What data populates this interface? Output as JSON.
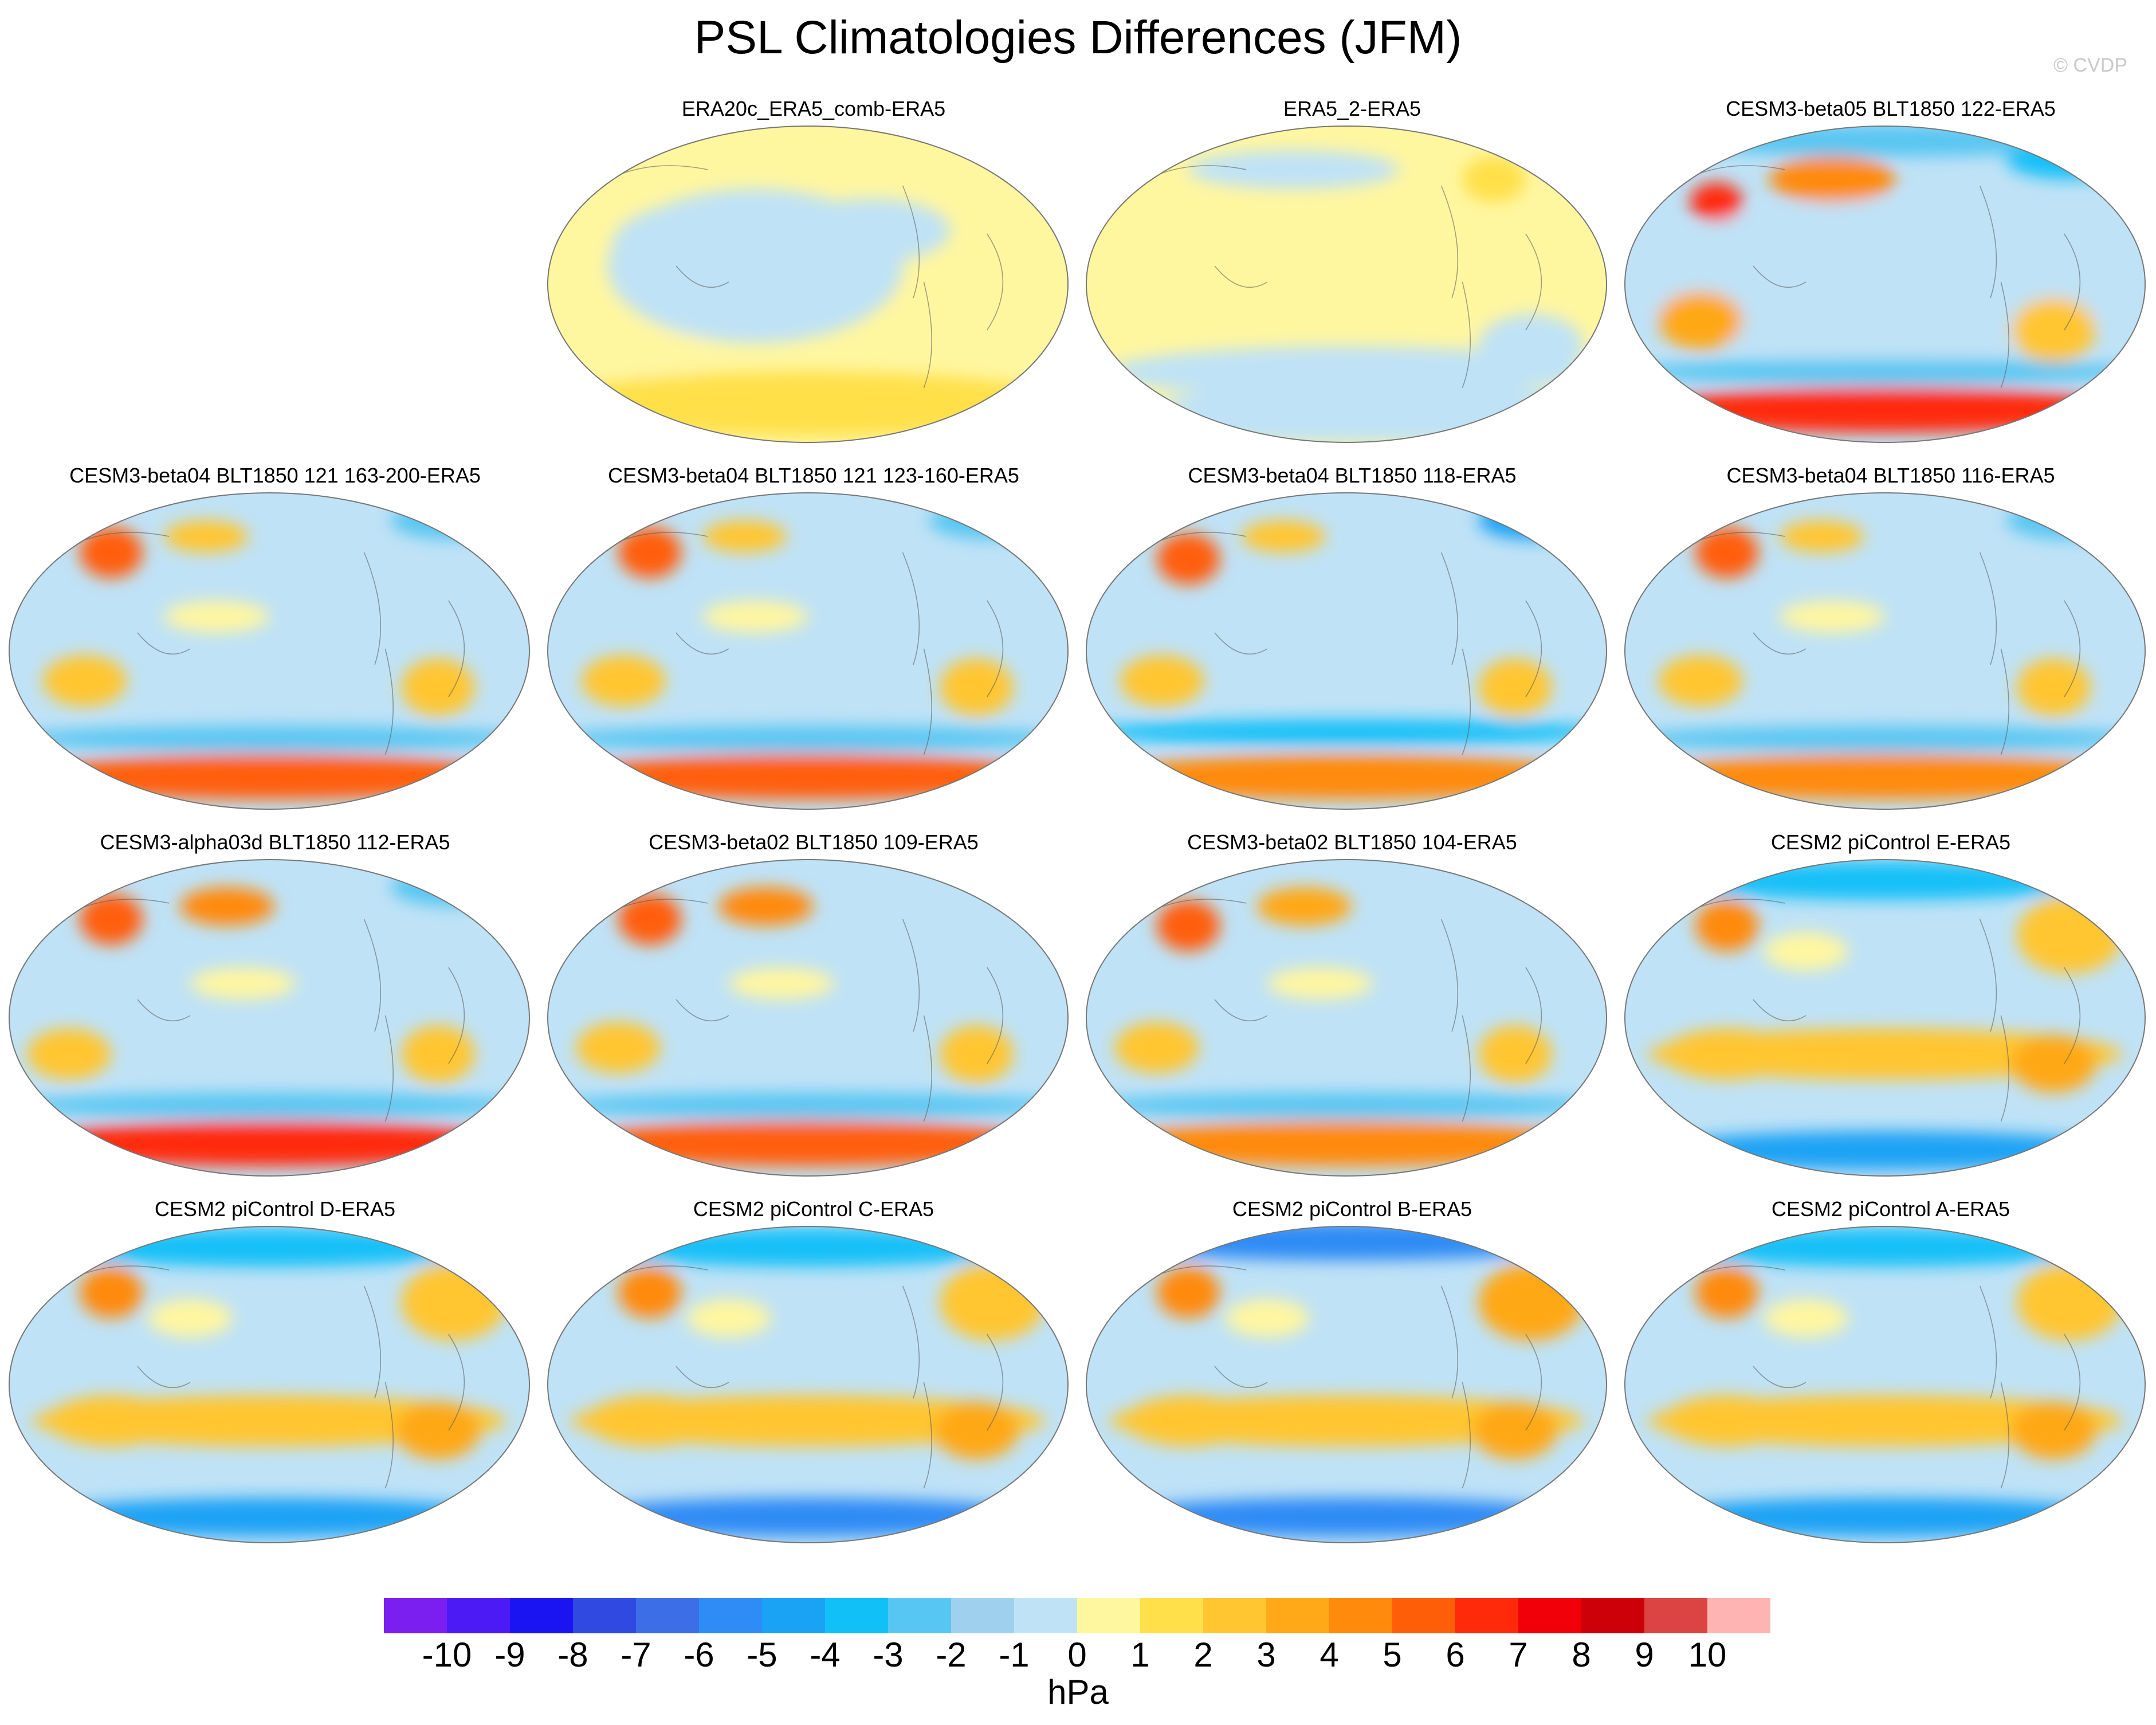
{
  "title": "PSL Climatologies Differences (JFM)",
  "credit": "© CVDP",
  "chart_data": {
    "type": "heatmap",
    "season": "JFM",
    "variable": "PSL",
    "units": "hPa",
    "colorbar": {
      "tick_labels": [
        "-10",
        "-9",
        "-8",
        "-7",
        "-6",
        "-5",
        "-4",
        "-3",
        "-2",
        "-1",
        "0",
        "1",
        "2",
        "3",
        "4",
        "5",
        "6",
        "7",
        "8",
        "9",
        "10"
      ],
      "colors": [
        "#7a1ff0",
        "#4b1af5",
        "#1a13f2",
        "#3049e0",
        "#3c6ee8",
        "#2f8bf5",
        "#1aa2f5",
        "#12c0f8",
        "#58c6f2",
        "#9fd1ee",
        "#bfe2f6",
        "#fff6a0",
        "#ffe04a",
        "#ffc632",
        "#ffa818",
        "#ff8a0c",
        "#ff5e08",
        "#ff2a0a",
        "#f2000a",
        "#cd000a",
        "#dc4444",
        "#ffb4b4"
      ]
    },
    "panels": [
      {
        "name": "ERA20c_ERA5_comb-ERA5",
        "cx": 0.22,
        "cy": 0.46,
        "label": "ERA20c_ERA5_comb-ERA5",
        "features": [
          [
            0.4,
            0.45,
            0.28,
            0.24,
            10
          ],
          [
            0.35,
            0.38,
            0.22,
            0.14,
            10
          ],
          [
            0.62,
            0.34,
            0.15,
            0.1,
            10
          ],
          [
            0.5,
            0.9,
            0.48,
            0.07,
            12
          ],
          [
            0.85,
            0.55,
            0.1,
            0.12,
            11
          ],
          [
            0.2,
            0.72,
            0.12,
            0.07,
            11
          ]
        ],
        "base": 11,
        "south": [
          0.5,
          0.88,
          0.5,
          0.1,
          12
        ]
      },
      {
        "name": "ERA5_2-ERA5",
        "label": "ERA5_2-ERA5",
        "base": 11,
        "features": [
          [
            0.5,
            0.78,
            0.45,
            0.08,
            10
          ],
          [
            0.55,
            0.88,
            0.4,
            0.06,
            10
          ],
          [
            0.78,
            0.18,
            0.06,
            0.07,
            12
          ],
          [
            0.4,
            0.15,
            0.2,
            0.06,
            10
          ],
          [
            0.85,
            0.7,
            0.1,
            0.1,
            10
          ]
        ],
        "south": [
          0.5,
          0.95,
          0.5,
          0.05,
          10
        ]
      },
      {
        "name": "CESM3-beta05 BLT1850 122-ERA5",
        "label": "CESM3-beta05 BLT1850 122-ERA5",
        "base": 10,
        "features": [
          [
            0.5,
            0.5,
            0.48,
            0.25,
            10
          ],
          [
            0.4,
            0.18,
            0.12,
            0.07,
            15
          ],
          [
            0.18,
            0.25,
            0.05,
            0.06,
            17
          ],
          [
            0.15,
            0.62,
            0.08,
            0.09,
            14
          ],
          [
            0.82,
            0.65,
            0.08,
            0.1,
            13
          ],
          [
            0.5,
            0.78,
            0.5,
            0.04,
            8
          ],
          [
            0.5,
            0.9,
            0.48,
            0.07,
            17
          ],
          [
            0.5,
            0.06,
            0.4,
            0.05,
            8
          ],
          [
            0.85,
            0.12,
            0.12,
            0.06,
            7
          ]
        ]
      },
      {
        "name": "CESM3-beta04 BLT1850 121 163-200-ERA5",
        "label": "CESM3-beta04 BLT1850 121 163-200-ERA5",
        "base": 10,
        "features": [
          [
            0.2,
            0.2,
            0.06,
            0.08,
            16
          ],
          [
            0.38,
            0.15,
            0.08,
            0.05,
            13
          ],
          [
            0.15,
            0.6,
            0.08,
            0.08,
            13
          ],
          [
            0.82,
            0.62,
            0.07,
            0.09,
            13
          ],
          [
            0.5,
            0.78,
            0.5,
            0.04,
            8
          ],
          [
            0.5,
            0.9,
            0.48,
            0.07,
            16
          ],
          [
            0.4,
            0.4,
            0.1,
            0.05,
            11
          ],
          [
            0.85,
            0.1,
            0.12,
            0.06,
            8
          ]
        ]
      },
      {
        "name": "CESM3-beta04 BLT1850 121 123-160-ERA5",
        "label": "CESM3-beta04 BLT1850 121 123-160-ERA5",
        "base": 10,
        "features": [
          [
            0.2,
            0.2,
            0.06,
            0.08,
            16
          ],
          [
            0.38,
            0.15,
            0.08,
            0.05,
            13
          ],
          [
            0.15,
            0.6,
            0.08,
            0.08,
            13
          ],
          [
            0.82,
            0.62,
            0.07,
            0.09,
            13
          ],
          [
            0.5,
            0.78,
            0.5,
            0.04,
            8
          ],
          [
            0.5,
            0.9,
            0.48,
            0.07,
            16
          ],
          [
            0.4,
            0.4,
            0.1,
            0.05,
            11
          ],
          [
            0.85,
            0.1,
            0.12,
            0.06,
            8
          ]
        ]
      },
      {
        "name": "CESM3-beta04 BLT1850 118-ERA5",
        "label": "CESM3-beta04 BLT1850 118-ERA5",
        "base": 10,
        "features": [
          [
            0.2,
            0.22,
            0.06,
            0.08,
            16
          ],
          [
            0.38,
            0.15,
            0.08,
            0.05,
            13
          ],
          [
            0.15,
            0.6,
            0.08,
            0.08,
            13
          ],
          [
            0.82,
            0.62,
            0.07,
            0.09,
            13
          ],
          [
            0.5,
            0.76,
            0.5,
            0.04,
            7
          ],
          [
            0.5,
            0.9,
            0.48,
            0.07,
            15
          ],
          [
            0.85,
            0.1,
            0.1,
            0.06,
            6
          ]
        ]
      },
      {
        "name": "CESM3-beta04 BLT1850 116-ERA5",
        "label": "CESM3-beta04 BLT1850 116-ERA5",
        "base": 10,
        "features": [
          [
            0.2,
            0.2,
            0.06,
            0.08,
            16
          ],
          [
            0.38,
            0.15,
            0.08,
            0.05,
            13
          ],
          [
            0.15,
            0.6,
            0.08,
            0.08,
            13
          ],
          [
            0.82,
            0.62,
            0.07,
            0.09,
            13
          ],
          [
            0.5,
            0.78,
            0.5,
            0.04,
            8
          ],
          [
            0.5,
            0.9,
            0.48,
            0.07,
            15
          ],
          [
            0.4,
            0.4,
            0.1,
            0.05,
            11
          ],
          [
            0.85,
            0.1,
            0.12,
            0.06,
            8
          ]
        ]
      },
      {
        "name": "CESM3-alpha03d BLT1850 112-ERA5",
        "label": "CESM3-alpha03d BLT1850 112-ERA5",
        "base": 10,
        "features": [
          [
            0.2,
            0.2,
            0.06,
            0.08,
            16
          ],
          [
            0.42,
            0.16,
            0.09,
            0.06,
            15
          ],
          [
            0.12,
            0.62,
            0.08,
            0.08,
            13
          ],
          [
            0.82,
            0.62,
            0.07,
            0.09,
            13
          ],
          [
            0.5,
            0.78,
            0.5,
            0.04,
            8
          ],
          [
            0.5,
            0.9,
            0.48,
            0.07,
            17
          ],
          [
            0.45,
            0.4,
            0.1,
            0.05,
            11
          ],
          [
            0.85,
            0.1,
            0.12,
            0.06,
            8
          ]
        ]
      },
      {
        "name": "CESM3-beta02 BLT1850 109-ERA5",
        "label": "CESM3-beta02 BLT1850 109-ERA5",
        "base": 10,
        "features": [
          [
            0.2,
            0.2,
            0.06,
            0.08,
            16
          ],
          [
            0.42,
            0.16,
            0.09,
            0.06,
            15
          ],
          [
            0.14,
            0.6,
            0.08,
            0.08,
            13
          ],
          [
            0.82,
            0.62,
            0.07,
            0.09,
            13
          ],
          [
            0.5,
            0.78,
            0.5,
            0.04,
            8
          ],
          [
            0.5,
            0.9,
            0.48,
            0.07,
            16
          ],
          [
            0.45,
            0.4,
            0.1,
            0.05,
            11
          ]
        ]
      },
      {
        "name": "CESM3-beta02 BLT1850 104-ERA5",
        "label": "CESM3-beta02 BLT1850 104-ERA5",
        "base": 10,
        "features": [
          [
            0.2,
            0.22,
            0.06,
            0.08,
            16
          ],
          [
            0.42,
            0.16,
            0.09,
            0.06,
            14
          ],
          [
            0.14,
            0.6,
            0.08,
            0.08,
            13
          ],
          [
            0.82,
            0.62,
            0.07,
            0.09,
            13
          ],
          [
            0.5,
            0.78,
            0.5,
            0.04,
            8
          ],
          [
            0.5,
            0.9,
            0.48,
            0.07,
            15
          ],
          [
            0.45,
            0.4,
            0.1,
            0.05,
            11
          ]
        ]
      },
      {
        "name": "CESM2 piControl E-ERA5",
        "label": "CESM2 piControl E-ERA5",
        "base": 10,
        "features": [
          [
            0.2,
            0.22,
            0.06,
            0.08,
            15
          ],
          [
            0.5,
            0.62,
            0.45,
            0.08,
            13
          ],
          [
            0.85,
            0.25,
            0.1,
            0.12,
            13
          ],
          [
            0.2,
            0.62,
            0.12,
            0.08,
            13
          ],
          [
            0.82,
            0.65,
            0.08,
            0.09,
            14
          ],
          [
            0.5,
            0.92,
            0.45,
            0.06,
            6
          ],
          [
            0.5,
            0.08,
            0.4,
            0.06,
            7
          ],
          [
            0.35,
            0.3,
            0.08,
            0.06,
            11
          ]
        ]
      },
      {
        "name": "CESM2 piControl D-ERA5",
        "label": "CESM2 piControl D-ERA5",
        "base": 10,
        "features": [
          [
            0.2,
            0.22,
            0.06,
            0.08,
            15
          ],
          [
            0.5,
            0.62,
            0.45,
            0.08,
            13
          ],
          [
            0.85,
            0.25,
            0.1,
            0.12,
            13
          ],
          [
            0.2,
            0.62,
            0.12,
            0.08,
            13
          ],
          [
            0.82,
            0.65,
            0.08,
            0.09,
            14
          ],
          [
            0.5,
            0.92,
            0.45,
            0.06,
            6
          ],
          [
            0.5,
            0.08,
            0.4,
            0.06,
            7
          ],
          [
            0.35,
            0.3,
            0.08,
            0.06,
            11
          ]
        ]
      },
      {
        "name": "CESM2 piControl C-ERA5",
        "label": "CESM2 piControl C-ERA5",
        "base": 10,
        "features": [
          [
            0.2,
            0.22,
            0.06,
            0.08,
            15
          ],
          [
            0.5,
            0.62,
            0.45,
            0.08,
            13
          ],
          [
            0.85,
            0.25,
            0.1,
            0.12,
            13
          ],
          [
            0.2,
            0.62,
            0.12,
            0.08,
            13
          ],
          [
            0.82,
            0.65,
            0.08,
            0.09,
            14
          ],
          [
            0.5,
            0.92,
            0.45,
            0.06,
            5
          ],
          [
            0.5,
            0.08,
            0.4,
            0.06,
            7
          ],
          [
            0.35,
            0.3,
            0.08,
            0.06,
            11
          ]
        ]
      },
      {
        "name": "CESM2 piControl B-ERA5",
        "label": "CESM2 piControl B-ERA5",
        "base": 10,
        "features": [
          [
            0.2,
            0.22,
            0.06,
            0.08,
            15
          ],
          [
            0.5,
            0.62,
            0.45,
            0.08,
            13
          ],
          [
            0.85,
            0.25,
            0.1,
            0.12,
            14
          ],
          [
            0.2,
            0.62,
            0.12,
            0.08,
            13
          ],
          [
            0.82,
            0.65,
            0.08,
            0.09,
            14
          ],
          [
            0.5,
            0.92,
            0.45,
            0.06,
            5
          ],
          [
            0.5,
            0.06,
            0.45,
            0.06,
            5
          ],
          [
            0.35,
            0.3,
            0.08,
            0.06,
            11
          ]
        ]
      },
      {
        "name": "CESM2 piControl A-ERA5",
        "label": "CESM2 piControl A-ERA5",
        "base": 10,
        "features": [
          [
            0.2,
            0.22,
            0.06,
            0.08,
            15
          ],
          [
            0.5,
            0.62,
            0.45,
            0.08,
            13
          ],
          [
            0.85,
            0.25,
            0.1,
            0.12,
            13
          ],
          [
            0.2,
            0.62,
            0.12,
            0.08,
            13
          ],
          [
            0.82,
            0.65,
            0.08,
            0.09,
            14
          ],
          [
            0.5,
            0.92,
            0.45,
            0.06,
            6
          ],
          [
            0.5,
            0.08,
            0.4,
            0.06,
            7
          ],
          [
            0.35,
            0.3,
            0.08,
            0.06,
            11
          ]
        ]
      }
    ]
  },
  "colorbar_units": "hPa"
}
